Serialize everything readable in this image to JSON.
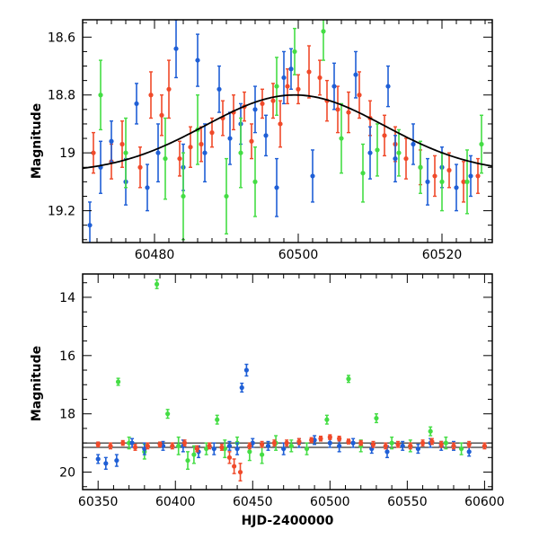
{
  "colors": {
    "green": "#44dd44",
    "blue": "#1f5fd6",
    "red": "#f04a2a",
    "model": "#000000"
  },
  "chart_data": [
    {
      "type": "scatter",
      "title": "",
      "xlabel": "",
      "ylabel": "Magnitude",
      "xlim": [
        60470,
        60527
      ],
      "ylim": [
        19.31,
        18.54
      ],
      "y_inverted": true,
      "xticks": [
        60480,
        60500,
        60520
      ],
      "yticks": [
        18.6,
        18.8,
        19,
        19.2
      ],
      "ytick_labels": [
        "18.6",
        "18.8",
        "19",
        "19.2"
      ],
      "model_curve": {
        "form": "gaussian",
        "baseline": 19.07,
        "amplitude": 0.27,
        "center": 60499.5,
        "sigma": 12.5,
        "color": "model"
      },
      "series": [
        {
          "color": "red",
          "points": [
            [
              60471.5,
              19.0,
              0.07
            ],
            [
              60474.0,
              19.03,
              0.06
            ],
            [
              60475.5,
              18.97,
              0.08
            ],
            [
              60478.0,
              19.05,
              0.07
            ],
            [
              60479.5,
              18.8,
              0.08
            ],
            [
              60481.0,
              18.87,
              0.07
            ],
            [
              60482.0,
              18.78,
              0.1
            ],
            [
              60483.5,
              19.02,
              0.06
            ],
            [
              60485.0,
              18.98,
              0.07
            ],
            [
              60486.5,
              18.97,
              0.06
            ],
            [
              60488.0,
              18.93,
              0.05
            ],
            [
              60489.5,
              18.88,
              0.06
            ],
            [
              60491.0,
              18.86,
              0.06
            ],
            [
              60492.5,
              18.84,
              0.05
            ],
            [
              60493.5,
              18.96,
              0.06
            ],
            [
              60495.0,
              18.83,
              0.05
            ],
            [
              60496.5,
              18.82,
              0.06
            ],
            [
              60497.5,
              18.9,
              0.08
            ],
            [
              60498.5,
              18.77,
              0.06
            ],
            [
              60500.0,
              18.78,
              0.05
            ],
            [
              60501.5,
              18.72,
              0.09
            ],
            [
              60503.0,
              18.74,
              0.06
            ],
            [
              60504.0,
              18.82,
              0.07
            ],
            [
              60505.5,
              18.85,
              0.08
            ],
            [
              60507.0,
              18.86,
              0.07
            ],
            [
              60508.5,
              18.8,
              0.08
            ],
            [
              60510.0,
              18.88,
              0.06
            ],
            [
              60512.0,
              18.94,
              0.07
            ],
            [
              60513.5,
              18.97,
              0.06
            ],
            [
              60515.0,
              19.02,
              0.07
            ],
            [
              60517.0,
              19.05,
              0.06
            ],
            [
              60519.0,
              19.08,
              0.07
            ],
            [
              60521.0,
              19.06,
              0.06
            ],
            [
              60523.0,
              19.1,
              0.07
            ],
            [
              60525.0,
              19.08,
              0.06
            ]
          ]
        },
        {
          "color": "blue",
          "points": [
            [
              60471.0,
              19.25,
              0.08
            ],
            [
              60472.5,
              19.05,
              0.09
            ],
            [
              60474.0,
              18.96,
              0.07
            ],
            [
              60476.0,
              19.1,
              0.08
            ],
            [
              60477.5,
              18.83,
              0.07
            ],
            [
              60479.0,
              19.12,
              0.08
            ],
            [
              60480.5,
              19.0,
              0.1
            ],
            [
              60483.0,
              18.64,
              0.1
            ],
            [
              60484.0,
              19.05,
              0.08
            ],
            [
              60486.0,
              18.68,
              0.09
            ],
            [
              60487.0,
              19.0,
              0.1
            ],
            [
              60489.0,
              18.78,
              0.08
            ],
            [
              60490.5,
              18.95,
              0.09
            ],
            [
              60492.0,
              18.9,
              0.07
            ],
            [
              60494.0,
              18.85,
              0.08
            ],
            [
              60495.5,
              18.94,
              0.07
            ],
            [
              60497.0,
              19.12,
              0.1
            ],
            [
              60498.0,
              18.74,
              0.09
            ],
            [
              60499.0,
              18.71,
              0.07
            ],
            [
              60502.0,
              19.08,
              0.09
            ],
            [
              60505.0,
              18.77,
              0.08
            ],
            [
              60508.0,
              18.73,
              0.08
            ],
            [
              60510.0,
              19.0,
              0.09
            ],
            [
              60512.5,
              18.77,
              0.07
            ],
            [
              60513.5,
              19.02,
              0.08
            ],
            [
              60516.0,
              18.97,
              0.07
            ],
            [
              60518.0,
              19.1,
              0.08
            ],
            [
              60520.0,
              19.05,
              0.07
            ],
            [
              60522.0,
              19.12,
              0.08
            ],
            [
              60524.0,
              19.08,
              0.07
            ]
          ]
        },
        {
          "color": "green",
          "points": [
            [
              60472.5,
              18.8,
              0.12
            ],
            [
              60476.0,
              19.0,
              0.12
            ],
            [
              60481.5,
              19.02,
              0.14
            ],
            [
              60484.0,
              19.15,
              0.15
            ],
            [
              60486.0,
              18.92,
              0.12
            ],
            [
              60490.0,
              19.15,
              0.13
            ],
            [
              60492.0,
              19.0,
              0.12
            ],
            [
              60494.0,
              19.1,
              0.12
            ],
            [
              60497.0,
              18.77,
              0.1
            ],
            [
              60499.5,
              18.65,
              0.08
            ],
            [
              60503.5,
              18.58,
              0.1
            ],
            [
              60506.0,
              18.95,
              0.12
            ],
            [
              60509.0,
              19.07,
              0.1
            ],
            [
              60511.0,
              18.99,
              0.09
            ],
            [
              60514.0,
              19.0,
              0.08
            ],
            [
              60517.0,
              19.05,
              0.09
            ],
            [
              60520.0,
              19.1,
              0.1
            ],
            [
              60523.5,
              19.1,
              0.11
            ],
            [
              60525.5,
              18.97,
              0.1
            ]
          ]
        }
      ]
    },
    {
      "type": "scatter",
      "title": "",
      "xlabel": "HJD-2400000",
      "ylabel": "Magnitude",
      "xlim": [
        60340,
        60605
      ],
      "ylim": [
        20.6,
        13.2
      ],
      "y_inverted": true,
      "xticks": [
        60350,
        60400,
        60450,
        60500,
        60550,
        60600
      ],
      "yticks": [
        14,
        16,
        18,
        20
      ],
      "ytick_labels": [
        "14",
        "16",
        "18",
        "20"
      ],
      "reference_lines": [
        19.0,
        19.15
      ],
      "series": [
        {
          "color": "green",
          "points": [
            [
              60363,
              16.9,
              0.12
            ],
            [
              60370,
              19.0,
              0.2
            ],
            [
              60380,
              19.3,
              0.25
            ],
            [
              60388,
              13.55,
              0.15
            ],
            [
              60395,
              18.0,
              0.15
            ],
            [
              60402,
              19.1,
              0.3
            ],
            [
              60408,
              19.6,
              0.3
            ],
            [
              60412,
              19.4,
              0.3
            ],
            [
              60420,
              19.2,
              0.2
            ],
            [
              60427,
              18.2,
              0.15
            ],
            [
              60432,
              19.2,
              0.3
            ],
            [
              60440,
              19.0,
              0.2
            ],
            [
              60448,
              19.3,
              0.3
            ],
            [
              60456,
              19.4,
              0.3
            ],
            [
              60465,
              19.0,
              0.25
            ],
            [
              60475,
              19.1,
              0.2
            ],
            [
              60485,
              19.2,
              0.2
            ],
            [
              60498,
              18.2,
              0.15
            ],
            [
              60512,
              16.8,
              0.12
            ],
            [
              60520,
              19.1,
              0.2
            ],
            [
              60530,
              18.15,
              0.15
            ],
            [
              60540,
              19.0,
              0.2
            ],
            [
              60552,
              19.1,
              0.2
            ],
            [
              60565,
              18.6,
              0.15
            ],
            [
              60575,
              19.0,
              0.2
            ],
            [
              60585,
              19.2,
              0.2
            ]
          ]
        },
        {
          "color": "blue",
          "points": [
            [
              60350,
              19.55,
              0.15
            ],
            [
              60355,
              19.7,
              0.2
            ],
            [
              60362,
              19.6,
              0.2
            ],
            [
              60372,
              19.0,
              0.15
            ],
            [
              60380,
              19.2,
              0.2
            ],
            [
              60392,
              19.1,
              0.15
            ],
            [
              60405,
              19.1,
              0.2
            ],
            [
              60415,
              19.3,
              0.2
            ],
            [
              60425,
              19.2,
              0.2
            ],
            [
              60435,
              19.1,
              0.15
            ],
            [
              60440,
              19.2,
              0.2
            ],
            [
              60443,
              17.1,
              0.15
            ],
            [
              60446,
              16.5,
              0.2
            ],
            [
              60450,
              19.0,
              0.15
            ],
            [
              60460,
              19.1,
              0.15
            ],
            [
              60470,
              19.2,
              0.2
            ],
            [
              60480,
              19.0,
              0.15
            ],
            [
              60490,
              18.9,
              0.15
            ],
            [
              60500,
              19.0,
              0.15
            ],
            [
              60506,
              19.1,
              0.2
            ],
            [
              60515,
              19.0,
              0.15
            ],
            [
              60527,
              19.2,
              0.15
            ],
            [
              60537,
              19.3,
              0.2
            ],
            [
              60547,
              19.1,
              0.15
            ],
            [
              60557,
              19.2,
              0.15
            ],
            [
              60565,
              19.0,
              0.15
            ],
            [
              60572,
              19.1,
              0.15
            ],
            [
              60580,
              19.1,
              0.15
            ],
            [
              60590,
              19.3,
              0.15
            ]
          ]
        },
        {
          "color": "red",
          "points": [
            [
              60350,
              19.05,
              0.08
            ],
            [
              60358,
              19.1,
              0.1
            ],
            [
              60366,
              19.0,
              0.08
            ],
            [
              60374,
              19.15,
              0.1
            ],
            [
              60382,
              19.1,
              0.1
            ],
            [
              60390,
              19.05,
              0.08
            ],
            [
              60398,
              19.1,
              0.1
            ],
            [
              60406,
              19.0,
              0.1
            ],
            [
              60414,
              19.2,
              0.1
            ],
            [
              60422,
              19.1,
              0.1
            ],
            [
              60430,
              19.15,
              0.1
            ],
            [
              60435,
              19.5,
              0.2
            ],
            [
              60438,
              19.8,
              0.25
            ],
            [
              60442,
              20.0,
              0.3
            ],
            [
              60448,
              19.1,
              0.1
            ],
            [
              60456,
              19.05,
              0.1
            ],
            [
              60464,
              19.0,
              0.1
            ],
            [
              60472,
              19.0,
              0.1
            ],
            [
              60480,
              18.95,
              0.1
            ],
            [
              60488,
              18.9,
              0.08
            ],
            [
              60494,
              18.85,
              0.08
            ],
            [
              60500,
              18.8,
              0.08
            ],
            [
              60506,
              18.85,
              0.08
            ],
            [
              60512,
              18.95,
              0.08
            ],
            [
              60520,
              19.0,
              0.08
            ],
            [
              60528,
              19.05,
              0.1
            ],
            [
              60536,
              19.1,
              0.1
            ],
            [
              60544,
              19.05,
              0.1
            ],
            [
              60552,
              19.1,
              0.1
            ],
            [
              60560,
              19.0,
              0.1
            ],
            [
              60566,
              18.95,
              0.1
            ],
            [
              60572,
              19.05,
              0.1
            ],
            [
              60580,
              19.1,
              0.1
            ],
            [
              60590,
              19.05,
              0.1
            ],
            [
              60600,
              19.1,
              0.1
            ]
          ]
        }
      ]
    }
  ]
}
